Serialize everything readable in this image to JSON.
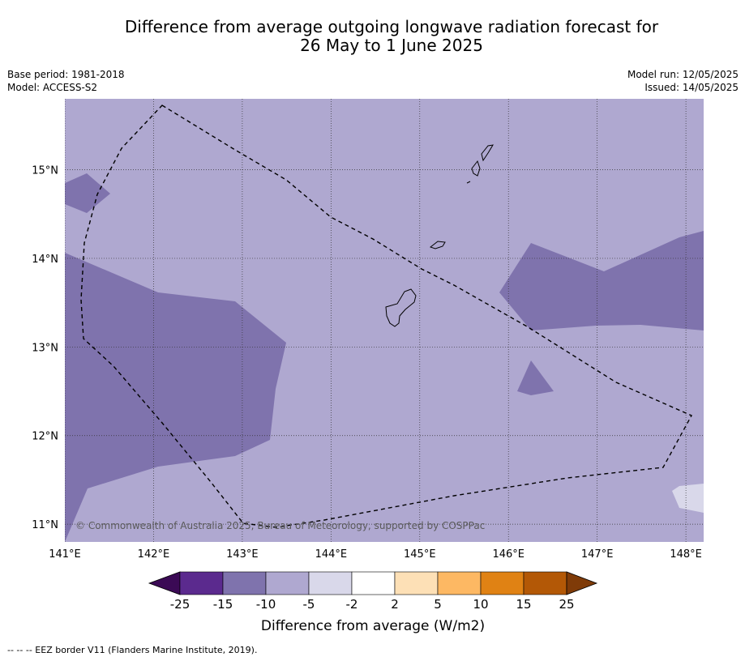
{
  "header": {
    "title_line1": "Difference from average outgoing longwave radiation forecast for",
    "title_line2": "26 May to 1 June 2025",
    "base_period": "Base period: 1981-2018",
    "model": "Model: ACCESS-S2",
    "model_run": "Model run: 12/05/2025",
    "issued": "Issued: 14/05/2025"
  },
  "map": {
    "copyright": "© Commonwealth of Australia 2025, Bureau of Meteorology, supported by COSPPac",
    "lon_ticks": [
      "141°E",
      "142°E",
      "143°E",
      "144°E",
      "145°E",
      "146°E",
      "147°E",
      "148°E"
    ],
    "lat_ticks": [
      "15°N",
      "14°N",
      "13°N",
      "12°N",
      "11°N"
    ],
    "lon_range": [
      141.0,
      148.2
    ],
    "lat_range": [
      10.8,
      15.8
    ],
    "background_category": "-10 to -5",
    "colors": {
      "bin_neg15_neg10": "#7f73ad",
      "bin_neg10_neg5": "#afa8d0",
      "bin_neg5_neg2": "#d9d8ea"
    }
  },
  "chart_data": {
    "type": "heatmap",
    "title": "Difference from average outgoing longwave radiation forecast for 26 May to 1 June 2025",
    "xlabel": "",
    "ylabel": "",
    "xlim": [
      141.0,
      148.2
    ],
    "ylim": [
      10.8,
      15.8
    ],
    "colorbar": {
      "label": "Difference from average (W/m2)",
      "boundaries": [
        "-25",
        "-15",
        "-10",
        "-5",
        "-2",
        "2",
        "5",
        "10",
        "15",
        "25"
      ],
      "colors": [
        "#5b2a8e",
        "#7f73ad",
        "#afa8d0",
        "#d9d8ea",
        "#ffffff",
        "#fde0b6",
        "#fdb863",
        "#e08214",
        "#b35806"
      ],
      "extend_low_color": "#3b0a55",
      "extend_high_color": "#7f3b08"
    }
  },
  "footer": {
    "note": "-- -- -- EEZ border V11 (Flanders Marine Institute, 2019)."
  }
}
